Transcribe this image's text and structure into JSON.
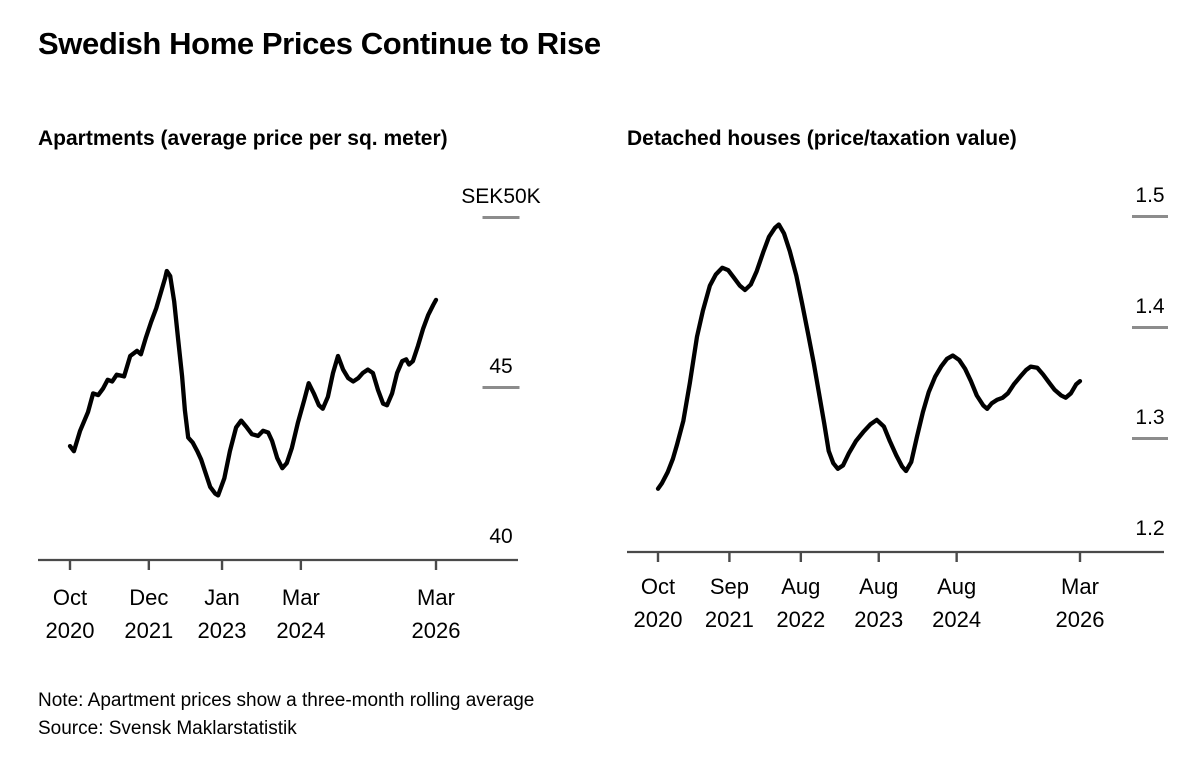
{
  "title": "Swedish Home Prices Continue to Rise",
  "footer": {
    "note": "Note: Apartment prices show a three-month rolling average",
    "source": "Source: Svensk Maklarstatistik"
  },
  "colors": {
    "line": "#000000",
    "axis": "#4a4a4a",
    "tick_dash": "#8c8c8c",
    "text": "#000000",
    "background": "#ffffff"
  },
  "chart_data": [
    {
      "type": "line",
      "title": "Apartments (average price per sq. meter)",
      "y_unit": "SEK thousand per sq. meter",
      "x_unit": "months since Oct 2020",
      "ylim": [
        40,
        50
      ],
      "grid": false,
      "legend": "none",
      "y_ticks": [
        {
          "label": "SEK50K",
          "value": 50,
          "dash": true
        },
        {
          "label": "45",
          "value": 45,
          "dash": true
        },
        {
          "label": "40",
          "value": 40,
          "dash": false
        }
      ],
      "x_ticks": [
        {
          "month_label": "Oct",
          "year_label": "2020",
          "month": 0
        },
        {
          "month_label": "Dec",
          "year_label": "2021",
          "month": 14
        },
        {
          "month_label": "Jan",
          "year_label": "2023",
          "month": 27
        },
        {
          "month_label": "Mar",
          "year_label": "2024",
          "month": 41
        },
        {
          "month_label": "Mar",
          "year_label": "2026",
          "month": 65
        }
      ],
      "points": [
        [
          0,
          43.35
        ],
        [
          0.7,
          43.2
        ],
        [
          1.8,
          43.8
        ],
        [
          3.2,
          44.35
        ],
        [
          4.1,
          44.9
        ],
        [
          5,
          44.85
        ],
        [
          5.9,
          45.05
        ],
        [
          6.7,
          45.3
        ],
        [
          7.5,
          45.25
        ],
        [
          8.3,
          45.45
        ],
        [
          9.6,
          45.4
        ],
        [
          10.7,
          46
        ],
        [
          11.9,
          46.15
        ],
        [
          12.6,
          46.05
        ],
        [
          13.5,
          46.55
        ],
        [
          14.4,
          47
        ],
        [
          15.3,
          47.4
        ],
        [
          16.2,
          47.9
        ],
        [
          16.9,
          48.3
        ],
        [
          17.2,
          48.5
        ],
        [
          17.8,
          48.35
        ],
        [
          18.5,
          47.6
        ],
        [
          19.2,
          46.5
        ],
        [
          19.9,
          45.4
        ],
        [
          20.4,
          44.4
        ],
        [
          21,
          43.6
        ],
        [
          21.8,
          43.45
        ],
        [
          22.6,
          43.2
        ],
        [
          23.3,
          42.95
        ],
        [
          24,
          42.6
        ],
        [
          24.9,
          42.15
        ],
        [
          25.8,
          41.95
        ],
        [
          26.3,
          41.9
        ],
        [
          27.4,
          42.4
        ],
        [
          28.4,
          43.2
        ],
        [
          29.5,
          43.9
        ],
        [
          30.4,
          44.1
        ],
        [
          31.4,
          43.9
        ],
        [
          32.3,
          43.7
        ],
        [
          33.4,
          43.65
        ],
        [
          34.3,
          43.8
        ],
        [
          35.2,
          43.75
        ],
        [
          35.9,
          43.5
        ],
        [
          36.8,
          43
        ],
        [
          37.7,
          42.7
        ],
        [
          38.5,
          42.85
        ],
        [
          39.4,
          43.3
        ],
        [
          40.5,
          44.05
        ],
        [
          41.6,
          44.7
        ],
        [
          42.4,
          45.2
        ],
        [
          43.3,
          44.9
        ],
        [
          44.2,
          44.55
        ],
        [
          44.9,
          44.45
        ],
        [
          45.8,
          44.8
        ],
        [
          46.7,
          45.5
        ],
        [
          47.6,
          46
        ],
        [
          48.5,
          45.6
        ],
        [
          49.4,
          45.35
        ],
        [
          50.3,
          45.25
        ],
        [
          51.2,
          45.35
        ],
        [
          52,
          45.5
        ],
        [
          52.9,
          45.6
        ],
        [
          53.8,
          45.5
        ],
        [
          54.7,
          45
        ],
        [
          55.6,
          44.6
        ],
        [
          56.3,
          44.55
        ],
        [
          57.2,
          44.9
        ],
        [
          58.1,
          45.5
        ],
        [
          59,
          45.85
        ],
        [
          59.7,
          45.9
        ],
        [
          60.2,
          45.75
        ],
        [
          60.9,
          45.85
        ],
        [
          61.8,
          46.3
        ],
        [
          62.7,
          46.8
        ],
        [
          63.6,
          47.2
        ],
        [
          64.5,
          47.5
        ],
        [
          65,
          47.65
        ]
      ]
    },
    {
      "type": "line",
      "title": "Detached houses (price/taxation value)",
      "y_unit": "price/taxation value ratio",
      "x_unit": "months since Oct 2020",
      "ylim": [
        1.2,
        1.5
      ],
      "grid": false,
      "legend": "none",
      "y_ticks": [
        {
          "label": "1.5",
          "value": 1.5,
          "dash": true
        },
        {
          "label": "1.4",
          "value": 1.4,
          "dash": true
        },
        {
          "label": "1.3",
          "value": 1.3,
          "dash": true
        },
        {
          "label": "1.2",
          "value": 1.2,
          "dash": false
        }
      ],
      "x_ticks": [
        {
          "month_label": "Oct",
          "year_label": "2020",
          "month": 0
        },
        {
          "month_label": "Sep",
          "year_label": "2021",
          "month": 11
        },
        {
          "month_label": "Aug",
          "year_label": "2022",
          "month": 22
        },
        {
          "month_label": "Aug",
          "year_label": "2023",
          "month": 34
        },
        {
          "month_label": "Aug",
          "year_label": "2024",
          "month": 46
        },
        {
          "month_label": "Mar",
          "year_label": "2026",
          "month": 65
        }
      ],
      "points": [
        [
          0,
          1.257
        ],
        [
          0.6,
          1.262
        ],
        [
          1.5,
          1.272
        ],
        [
          2.3,
          1.284
        ],
        [
          2.9,
          1.296
        ],
        [
          3.9,
          1.318
        ],
        [
          4.9,
          1.352
        ],
        [
          6,
          1.394
        ],
        [
          6.9,
          1.417
        ],
        [
          8,
          1.44
        ],
        [
          8.9,
          1.45
        ],
        [
          9.9,
          1.456
        ],
        [
          10.8,
          1.454
        ],
        [
          11.7,
          1.447
        ],
        [
          12.6,
          1.44
        ],
        [
          13.4,
          1.436
        ],
        [
          14.3,
          1.441
        ],
        [
          15.2,
          1.453
        ],
        [
          16.2,
          1.47
        ],
        [
          17.1,
          1.484
        ],
        [
          18,
          1.492
        ],
        [
          18.6,
          1.495
        ],
        [
          19.4,
          1.487
        ],
        [
          20.3,
          1.471
        ],
        [
          21.3,
          1.449
        ],
        [
          22.2,
          1.424
        ],
        [
          23.1,
          1.397
        ],
        [
          24,
          1.37
        ],
        [
          24.8,
          1.343
        ],
        [
          25.6,
          1.316
        ],
        [
          26.3,
          1.291
        ],
        [
          27,
          1.28
        ],
        [
          27.7,
          1.275
        ],
        [
          28.5,
          1.278
        ],
        [
          29.4,
          1.289
        ],
        [
          30.5,
          1.3
        ],
        [
          31.6,
          1.308
        ],
        [
          32.7,
          1.315
        ],
        [
          33.7,
          1.319
        ],
        [
          34.8,
          1.313
        ],
        [
          35.7,
          1.3
        ],
        [
          36.7,
          1.287
        ],
        [
          37.6,
          1.277
        ],
        [
          38.2,
          1.273
        ],
        [
          39,
          1.281
        ],
        [
          39.9,
          1.304
        ],
        [
          40.8,
          1.326
        ],
        [
          41.7,
          1.344
        ],
        [
          42.7,
          1.358
        ],
        [
          43.6,
          1.367
        ],
        [
          44.5,
          1.374
        ],
        [
          45.4,
          1.377
        ],
        [
          46.4,
          1.373
        ],
        [
          47.3,
          1.365
        ],
        [
          48.2,
          1.354
        ],
        [
          49.1,
          1.341
        ],
        [
          50.1,
          1.332
        ],
        [
          50.7,
          1.329
        ],
        [
          51.4,
          1.334
        ],
        [
          52.2,
          1.337
        ],
        [
          53.1,
          1.339
        ],
        [
          53.9,
          1.343
        ],
        [
          54.8,
          1.351
        ],
        [
          55.8,
          1.358
        ],
        [
          56.7,
          1.364
        ],
        [
          57.4,
          1.367
        ],
        [
          58.4,
          1.366
        ],
        [
          59.3,
          1.36
        ],
        [
          60.2,
          1.353
        ],
        [
          61.1,
          1.346
        ],
        [
          62.1,
          1.341
        ],
        [
          62.8,
          1.339
        ],
        [
          63.6,
          1.343
        ],
        [
          64.4,
          1.351
        ],
        [
          65,
          1.354
        ]
      ]
    }
  ]
}
